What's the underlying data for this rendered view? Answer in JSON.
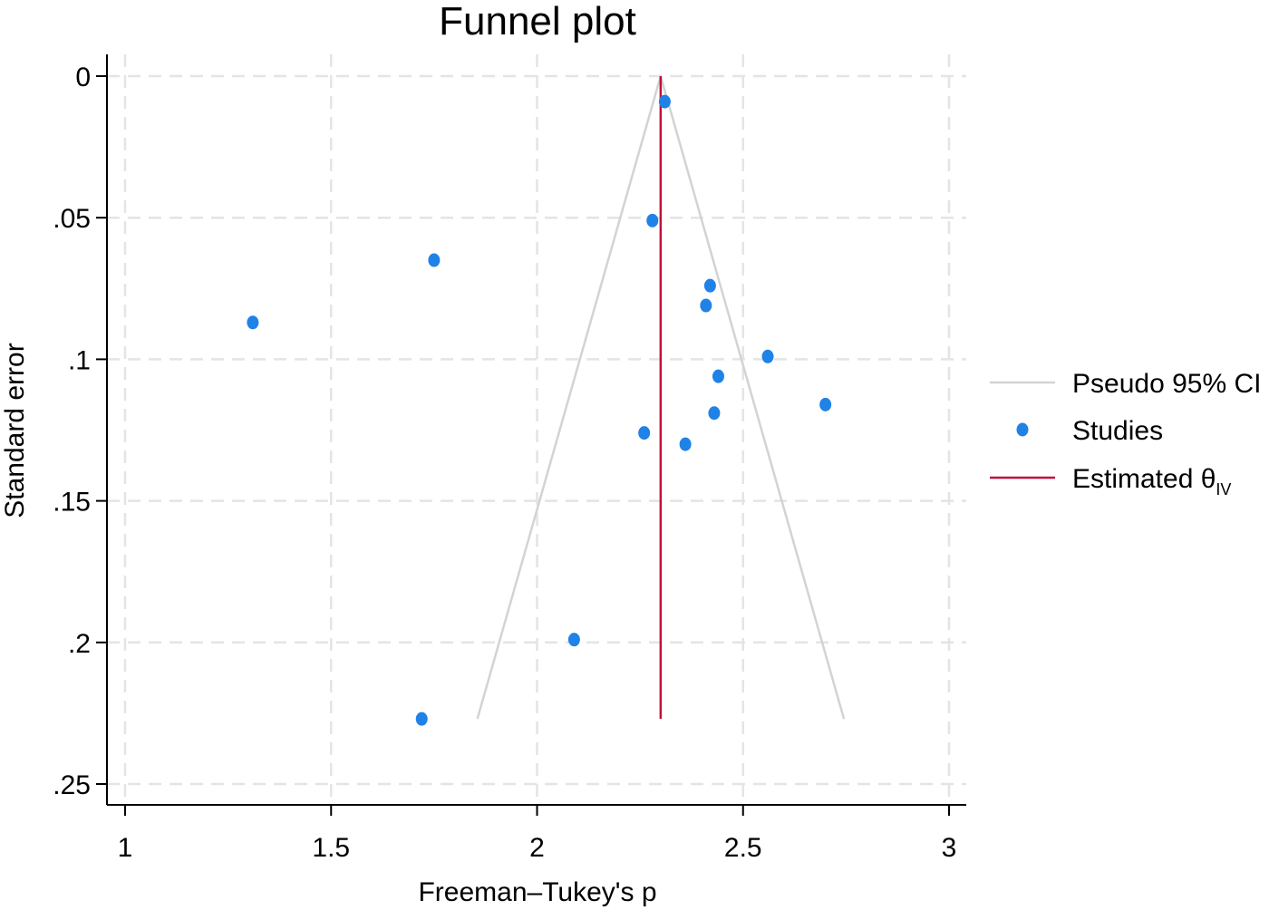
{
  "chart_data": {
    "type": "scatter",
    "title": "Funnel plot",
    "xlabel": "Freeman–Tukey's p",
    "ylabel": "Standard error",
    "xlim": [
      0.96,
      3.03
    ],
    "ylim": [
      0,
      0.257
    ],
    "y_reversed": true,
    "grid": true,
    "x_ticks": [
      {
        "value": 1,
        "label": "1"
      },
      {
        "value": 1.5,
        "label": "1.5"
      },
      {
        "value": 2,
        "label": "2"
      },
      {
        "value": 2.5,
        "label": "2.5"
      },
      {
        "value": 3,
        "label": "3"
      }
    ],
    "y_ticks": [
      {
        "value": 0,
        "label": "0"
      },
      {
        "value": 0.05,
        "label": ".05"
      },
      {
        "value": 0.1,
        "label": ".1"
      },
      {
        "value": 0.15,
        "label": ".15"
      },
      {
        "value": 0.2,
        "label": ".2"
      },
      {
        "value": 0.25,
        "label": ".25"
      }
    ],
    "estimate": 2.3,
    "se_max": 0.227,
    "series": [
      {
        "name": "Studies",
        "color": "#1f82e6",
        "points": [
          {
            "x": 2.31,
            "y": 0.009
          },
          {
            "x": 2.28,
            "y": 0.051
          },
          {
            "x": 1.75,
            "y": 0.065
          },
          {
            "x": 2.42,
            "y": 0.074
          },
          {
            "x": 2.41,
            "y": 0.081
          },
          {
            "x": 1.31,
            "y": 0.087
          },
          {
            "x": 2.56,
            "y": 0.099
          },
          {
            "x": 2.44,
            "y": 0.106
          },
          {
            "x": 2.7,
            "y": 0.116
          },
          {
            "x": 2.43,
            "y": 0.119
          },
          {
            "x": 2.26,
            "y": 0.126
          },
          {
            "x": 2.36,
            "y": 0.13
          },
          {
            "x": 2.09,
            "y": 0.199
          },
          {
            "x": 1.72,
            "y": 0.227
          }
        ]
      }
    ],
    "legend": {
      "placement": "right",
      "entries": [
        {
          "label": "Pseudo 95% CI",
          "kind": "line",
          "color": "#d3d3d3"
        },
        {
          "label": "Studies",
          "kind": "marker",
          "color": "#1f82e6"
        },
        {
          "label": "Estimated θ",
          "subscript": "IV",
          "kind": "line",
          "color": "#c0103a"
        }
      ]
    }
  }
}
